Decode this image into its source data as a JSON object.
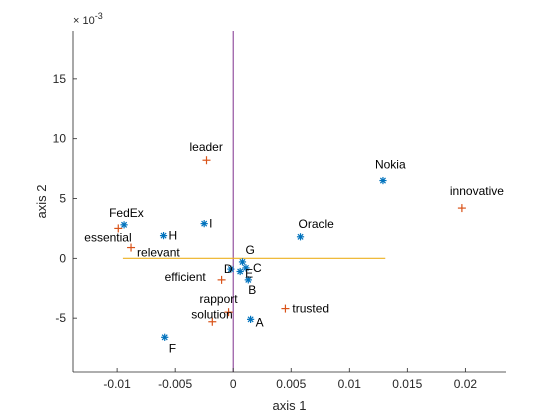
{
  "chart_data": {
    "type": "scatter",
    "title": "",
    "xlabel": "axis 1",
    "ylabel": "axis 2",
    "exponent_label": "× 10^-3",
    "exponent_base": "× 10",
    "exponent_power": "-3",
    "xlim": [
      -0.0138,
      0.0235
    ],
    "ylim": [
      -9.5,
      19
    ],
    "xticks": [
      -0.01,
      -0.005,
      0,
      0.005,
      0.01,
      0.015,
      0.02
    ],
    "xtick_labels": [
      "-0.01",
      "-0.005",
      "0",
      "0.005",
      "0.01",
      "0.015",
      "0.02"
    ],
    "yticks": [
      -5,
      0,
      5,
      10,
      15
    ],
    "ytick_labels": [
      "-5",
      "0",
      "5",
      "10",
      "15"
    ],
    "grid": false,
    "legend": "none",
    "series": [
      {
        "marker": "star",
        "color": "#0072BD",
        "points": [
          {
            "label": "Nokia",
            "x": 0.0129,
            "y": 6.5
          },
          {
            "label": "FedEx",
            "x": -0.0094,
            "y": 2.8
          },
          {
            "label": "H",
            "x": -0.006,
            "y": 1.9
          },
          {
            "label": "I",
            "x": -0.0025,
            "y": 2.9
          },
          {
            "label": "Oracle",
            "x": 0.0058,
            "y": 1.8
          },
          {
            "label": "G",
            "x": 0.0008,
            "y": -0.3
          },
          {
            "label": "D",
            "x": -0.0002,
            "y": -0.9
          },
          {
            "label": "C",
            "x": 0.0011,
            "y": -0.8
          },
          {
            "label": "E",
            "x": 0.0006,
            "y": -1.1
          },
          {
            "label": "B",
            "x": 0.0013,
            "y": -1.8
          },
          {
            "label": "A",
            "x": 0.0015,
            "y": -5.1
          },
          {
            "label": "F",
            "x": -0.0059,
            "y": -6.6
          }
        ]
      },
      {
        "marker": "plus",
        "color": "#D95319",
        "points": [
          {
            "label": "leader",
            "x": -0.0023,
            "y": 8.2
          },
          {
            "label": "innovative",
            "x": 0.0197,
            "y": 4.2
          },
          {
            "label": "essential",
            "x": -0.0099,
            "y": 2.5
          },
          {
            "label": "relevant",
            "x": -0.0088,
            "y": 0.9
          },
          {
            "label": "efficient",
            "x": -0.001,
            "y": -1.8
          },
          {
            "label": "rapport",
            "x": -0.0004,
            "y": -4.5
          },
          {
            "label": "solution",
            "x": -0.0018,
            "y": -5.3
          },
          {
            "label": "trusted",
            "x": 0.0045,
            "y": -4.2
          }
        ]
      }
    ],
    "reference_lines": [
      {
        "orientation": "vertical",
        "x": 0,
        "y_range": [
          -9.5,
          19
        ],
        "color": "#7E2F8E"
      },
      {
        "orientation": "horizontal",
        "y": 0,
        "x_range": [
          -0.0095,
          0.0131
        ],
        "color": "#EDB120"
      }
    ]
  }
}
